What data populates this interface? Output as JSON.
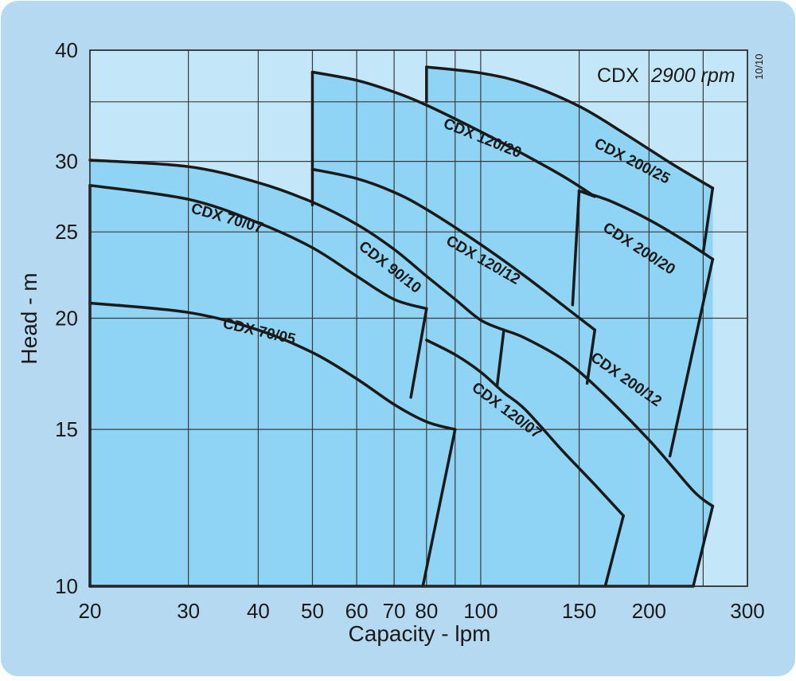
{
  "chart_data": {
    "type": "line",
    "header": {
      "model": "CDX",
      "speed": "2900 rpm"
    },
    "revision": "10/10",
    "xlabel": "Capacity - lpm",
    "ylabel": "Head - m",
    "x_scale": "log",
    "y_scale": "log",
    "xlim": [
      20,
      300
    ],
    "ylim": [
      10,
      40
    ],
    "x_ticks": [
      20,
      30,
      40,
      50,
      60,
      70,
      80,
      100,
      150,
      200,
      300
    ],
    "y_ticks": [
      10,
      15,
      20,
      25,
      30,
      40
    ],
    "grid": true,
    "colors": {
      "panel": "#b5d9f1",
      "plot_bg": "#c3e6f8",
      "area_fill": "#8fd4f4",
      "curve": "#1a1a1a"
    },
    "series": [
      {
        "name": "CDX 70/05",
        "x": [
          20,
          30,
          40,
          50,
          60,
          70,
          80,
          90
        ],
        "y": [
          20.8,
          20.3,
          19.4,
          18.3,
          17.1,
          16.0,
          15.3,
          15.0
        ]
      },
      {
        "name": "CDX 70/07",
        "x": [
          20,
          30,
          40,
          50,
          60,
          70,
          80
        ],
        "y": [
          28.2,
          27.2,
          25.6,
          24.0,
          22.3,
          21.0,
          20.5
        ]
      },
      {
        "name": "CDX 90/10",
        "x": [
          20,
          30,
          40,
          50,
          60,
          70,
          80,
          90,
          100,
          110
        ],
        "y": [
          30.1,
          29.6,
          28.4,
          27.0,
          25.5,
          23.9,
          22.3,
          21.0,
          19.9,
          19.4
        ]
      },
      {
        "name": "CDX 120/07",
        "x": [
          80,
          90,
          100,
          110,
          120,
          140,
          160,
          180
        ],
        "y": [
          18.9,
          18.2,
          17.4,
          16.5,
          15.8,
          14.2,
          13.0,
          12.0
        ]
      },
      {
        "name": "CDX 120/12",
        "x": [
          50,
          60,
          70,
          80,
          100,
          120,
          140,
          160
        ],
        "y": [
          29.4,
          28.7,
          27.7,
          26.5,
          24.2,
          22.3,
          20.7,
          19.4
        ]
      },
      {
        "name": "CDX 120/20",
        "x": [
          50,
          60,
          70,
          80,
          100,
          120,
          140,
          160
        ],
        "y": [
          37.8,
          37.0,
          35.9,
          34.7,
          32.4,
          30.5,
          28.9,
          27.4
        ]
      },
      {
        "name": "CDX 200/12",
        "x": [
          110,
          120,
          140,
          160,
          200,
          240,
          260
        ],
        "y": [
          19.4,
          19.0,
          18.0,
          16.8,
          14.6,
          12.8,
          12.3
        ]
      },
      {
        "name": "CDX 200/20",
        "x": [
          150,
          170,
          200,
          230,
          260
        ],
        "y": [
          27.8,
          27.1,
          25.8,
          24.5,
          23.3
        ]
      },
      {
        "name": "CDX 200/25",
        "x": [
          80,
          100,
          120,
          150,
          180,
          220,
          260
        ],
        "y": [
          38.3,
          37.7,
          36.7,
          34.6,
          32.3,
          29.8,
          28.0
        ]
      }
    ]
  }
}
